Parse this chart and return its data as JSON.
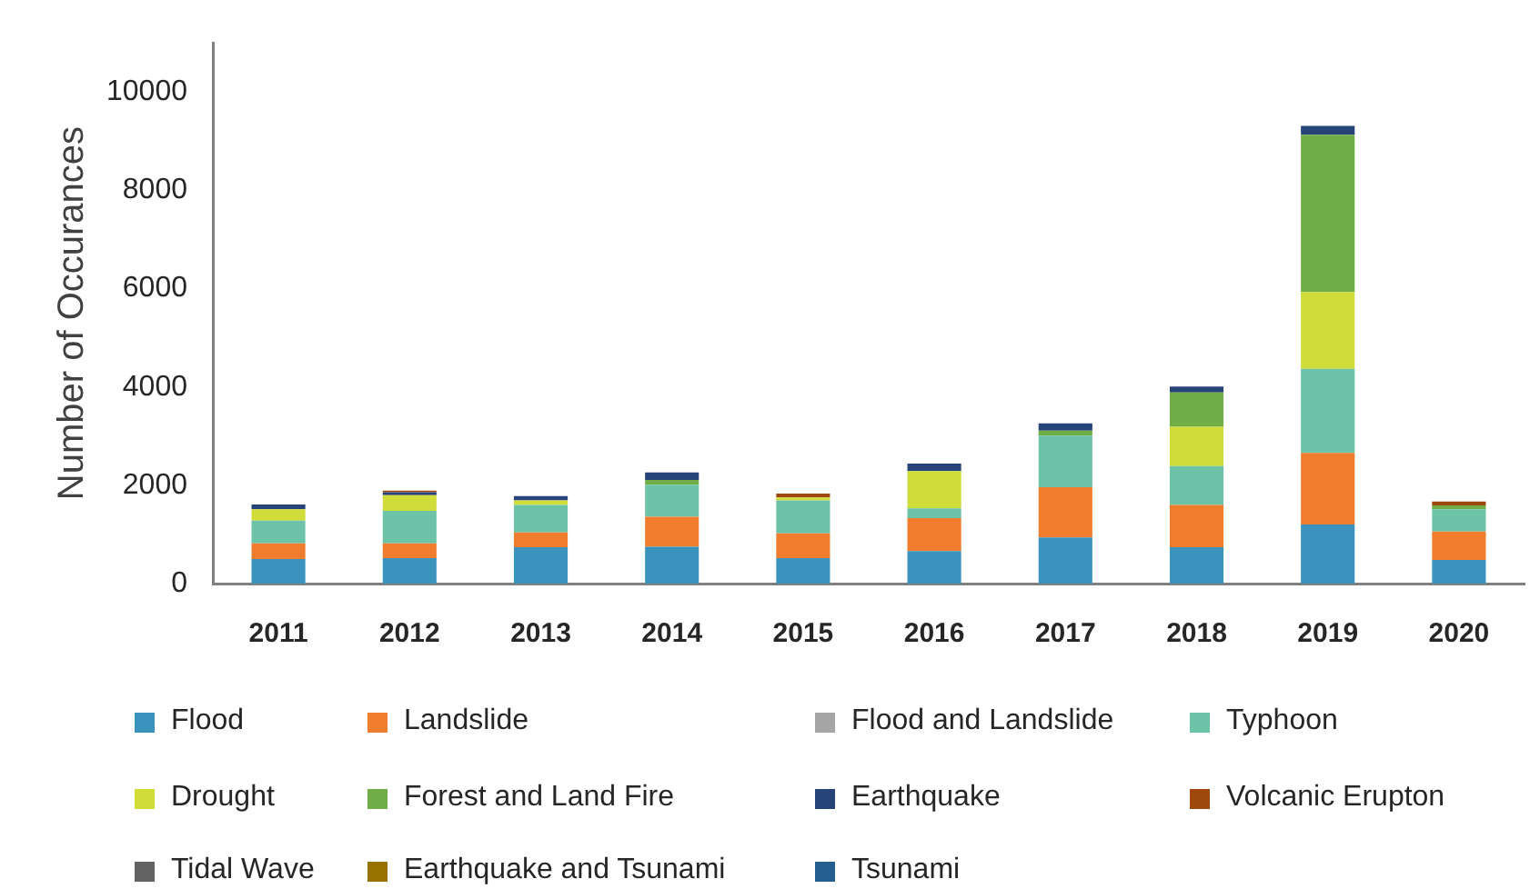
{
  "chart_data": {
    "type": "bar",
    "stacked": true,
    "ylabel": "Number of Occurances",
    "categories": [
      "2011",
      "2012",
      "2013",
      "2014",
      "2015",
      "2016",
      "2017",
      "2018",
      "2019",
      "2020"
    ],
    "series": [
      {
        "name": "Flood",
        "color": "#3a93bd",
        "values": [
          500,
          520,
          740,
          750,
          520,
          660,
          940,
          740,
          1200,
          480
        ]
      },
      {
        "name": "Landslide",
        "color": "#ef7d2d",
        "values": [
          320,
          300,
          300,
          610,
          500,
          670,
          1020,
          860,
          1460,
          580
        ]
      },
      {
        "name": "Flood and Landslide",
        "color": "#a5a5a5",
        "values": [
          0,
          0,
          0,
          0,
          0,
          0,
          0,
          0,
          0,
          0
        ]
      },
      {
        "name": "Typhoon",
        "color": "#6cc3a8",
        "values": [
          460,
          660,
          560,
          650,
          670,
          200,
          1050,
          790,
          1710,
          450
        ]
      },
      {
        "name": "Drought",
        "color": "#cfdc3a",
        "values": [
          230,
          320,
          90,
          0,
          60,
          760,
          0,
          800,
          1560,
          0
        ]
      },
      {
        "name": "Forest and Land Fire",
        "color": "#70ad47",
        "values": [
          0,
          0,
          0,
          100,
          0,
          0,
          100,
          700,
          3200,
          80
        ]
      },
      {
        "name": "Earthquake",
        "color": "#264478",
        "values": [
          100,
          60,
          90,
          150,
          0,
          150,
          150,
          120,
          180,
          0
        ]
      },
      {
        "name": "Volcanic Erupton",
        "color": "#9e480e",
        "values": [
          0,
          30,
          0,
          0,
          80,
          0,
          0,
          0,
          0,
          80
        ]
      },
      {
        "name": "Tidal Wave",
        "color": "#636363",
        "values": [
          0,
          0,
          0,
          0,
          0,
          0,
          0,
          0,
          0,
          0
        ]
      },
      {
        "name": "Earthquake and Tsunami",
        "color": "#997300",
        "values": [
          0,
          0,
          0,
          0,
          0,
          0,
          0,
          0,
          0,
          0
        ]
      },
      {
        "name": "Tsunami",
        "color": "#255e91",
        "values": [
          0,
          0,
          0,
          0,
          0,
          0,
          0,
          0,
          0,
          0
        ]
      }
    ],
    "ylim": [
      0,
      11000
    ],
    "yticks": [
      0,
      2000,
      4000,
      6000,
      8000,
      10000
    ],
    "legend": "bottom"
  }
}
